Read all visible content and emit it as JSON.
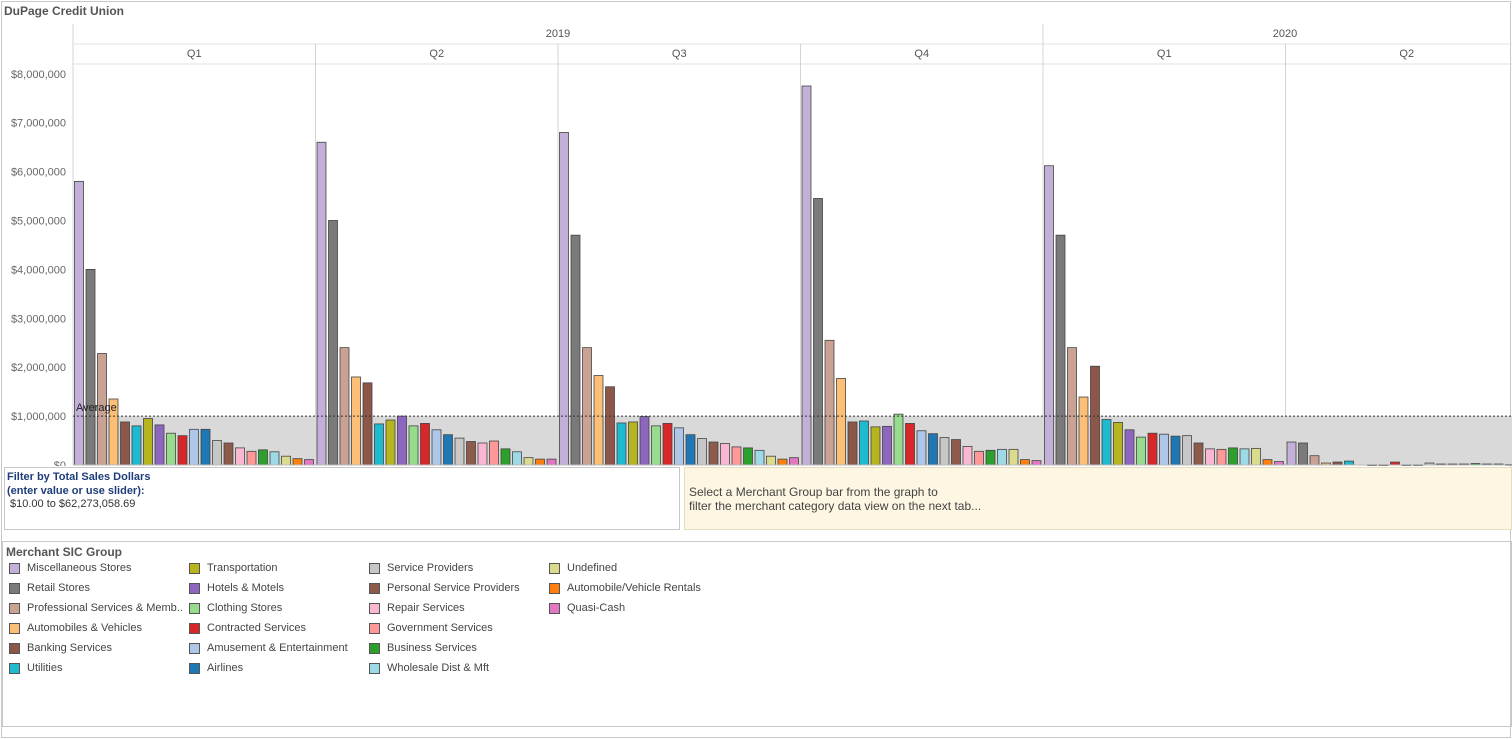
{
  "app": {
    "title": "DuPage Credit Union"
  },
  "filter": {
    "title": "Filter by Total Sales Dollars",
    "hint": "(enter value or use slider):",
    "range": "$10.00 to $62,273,058.69"
  },
  "note": {
    "line1": "Select a Merchant Group bar from the graph to",
    "line2": "filter the merchant category data view on the next tab..."
  },
  "legend": {
    "title": "Merchant SIC Group",
    "items": [
      {
        "label": "Miscellaneous Stores",
        "color": "#c2b0d8"
      },
      {
        "label": "Retail Stores",
        "color": "#7a7a7a"
      },
      {
        "label": "Professional Services & Memb..",
        "color": "#c9a294"
      },
      {
        "label": "Automobiles & Vehicles",
        "color": "#fdbe76"
      },
      {
        "label": "Banking Services",
        "color": "#8c5648"
      },
      {
        "label": "Utilities",
        "color": "#1dbad0"
      },
      {
        "label": "Transportation",
        "color": "#b6b51f"
      },
      {
        "label": "Hotels & Motels",
        "color": "#8d66bd"
      },
      {
        "label": "Clothing Stores",
        "color": "#96dc8c"
      },
      {
        "label": "Contracted Services",
        "color": "#d72728"
      },
      {
        "label": "Amusement & Entertainment",
        "color": "#aec6e8"
      },
      {
        "label": "Airlines",
        "color": "#1f77b4"
      },
      {
        "label": "Service Providers",
        "color": "#c7c7c7"
      },
      {
        "label": "Personal Service Providers",
        "color": "#8d5b4c"
      },
      {
        "label": "Repair Services",
        "color": "#f9b7d2"
      },
      {
        "label": "Government Services",
        "color": "#ff9896"
      },
      {
        "label": "Business Services",
        "color": "#2ca02c"
      },
      {
        "label": "Wholesale Dist & Mft",
        "color": "#9edae5"
      },
      {
        "label": "Undefined",
        "color": "#dbdb8d"
      },
      {
        "label": "Automobile/Vehicle Rentals",
        "color": "#ff7f0e"
      },
      {
        "label": "Quasi-Cash",
        "color": "#e377c2"
      }
    ]
  },
  "chart_data": {
    "type": "bar",
    "title": "DuPage Credit Union",
    "xlabel": "",
    "ylabel": "",
    "ylim": [
      0,
      8200000
    ],
    "yticks": [
      0,
      1000000,
      2000000,
      3000000,
      4000000,
      5000000,
      6000000,
      7000000,
      8000000
    ],
    "ytick_labels": [
      "$0",
      "$1,000,000",
      "$2,000,000",
      "$3,000,000",
      "$4,000,000",
      "$5,000,000",
      "$6,000,000",
      "$7,000,000",
      "$8,000,000"
    ],
    "years": [
      {
        "label": "2019",
        "quarters": 4
      },
      {
        "label": "2020",
        "quarters": 2
      }
    ],
    "categories": [
      "Q1",
      "Q2",
      "Q3",
      "Q4",
      "Q1",
      "Q2"
    ],
    "reference_line": {
      "label": "Average",
      "value": 1000000
    },
    "series_names": [
      "Miscellaneous Stores",
      "Retail Stores",
      "Professional Services & Memb..",
      "Automobiles & Vehicles",
      "Banking Services",
      "Utilities",
      "Transportation",
      "Hotels & Motels",
      "Clothing Stores",
      "Contracted Services",
      "Amusement & Entertainment",
      "Airlines",
      "Service Providers",
      "Personal Service Providers",
      "Repair Services",
      "Government Services",
      "Business Services",
      "Wholesale Dist & Mft",
      "Undefined",
      "Automobile/Vehicle Rentals",
      "Quasi-Cash"
    ],
    "panes": [
      {
        "label": "2019 Q1",
        "values": [
          5800000,
          4000000,
          2280000,
          1350000,
          880000,
          800000,
          950000,
          820000,
          650000,
          600000,
          730000,
          730000,
          500000,
          450000,
          350000,
          280000,
          310000,
          270000,
          180000,
          130000,
          110000
        ]
      },
      {
        "label": "2019 Q2",
        "values": [
          6600000,
          5000000,
          2400000,
          1800000,
          1680000,
          840000,
          920000,
          1000000,
          800000,
          850000,
          720000,
          620000,
          550000,
          480000,
          450000,
          490000,
          330000,
          270000,
          150000,
          120000,
          120000
        ]
      },
      {
        "label": "2019 Q3",
        "values": [
          6800000,
          4700000,
          2400000,
          1830000,
          1600000,
          860000,
          880000,
          990000,
          800000,
          850000,
          760000,
          620000,
          540000,
          470000,
          440000,
          370000,
          350000,
          300000,
          180000,
          120000,
          150000
        ]
      },
      {
        "label": "2019 Q4",
        "values": [
          7750000,
          5450000,
          2550000,
          1770000,
          880000,
          900000,
          780000,
          790000,
          1040000,
          850000,
          700000,
          640000,
          560000,
          520000,
          380000,
          280000,
          300000,
          320000,
          320000,
          110000,
          90000
        ]
      },
      {
        "label": "2020 Q1",
        "values": [
          6120000,
          4700000,
          2400000,
          1390000,
          2020000,
          930000,
          870000,
          720000,
          570000,
          650000,
          630000,
          590000,
          600000,
          450000,
          330000,
          320000,
          350000,
          330000,
          340000,
          110000,
          70000
        ]
      },
      {
        "label": "2020 Q2",
        "values": [
          470000,
          450000,
          190000,
          40000,
          60000,
          80000,
          0,
          5000,
          5000,
          60000,
          5000,
          5000,
          40000,
          20000,
          20000,
          20000,
          30000,
          20000,
          20000,
          10000,
          20000
        ]
      }
    ]
  }
}
